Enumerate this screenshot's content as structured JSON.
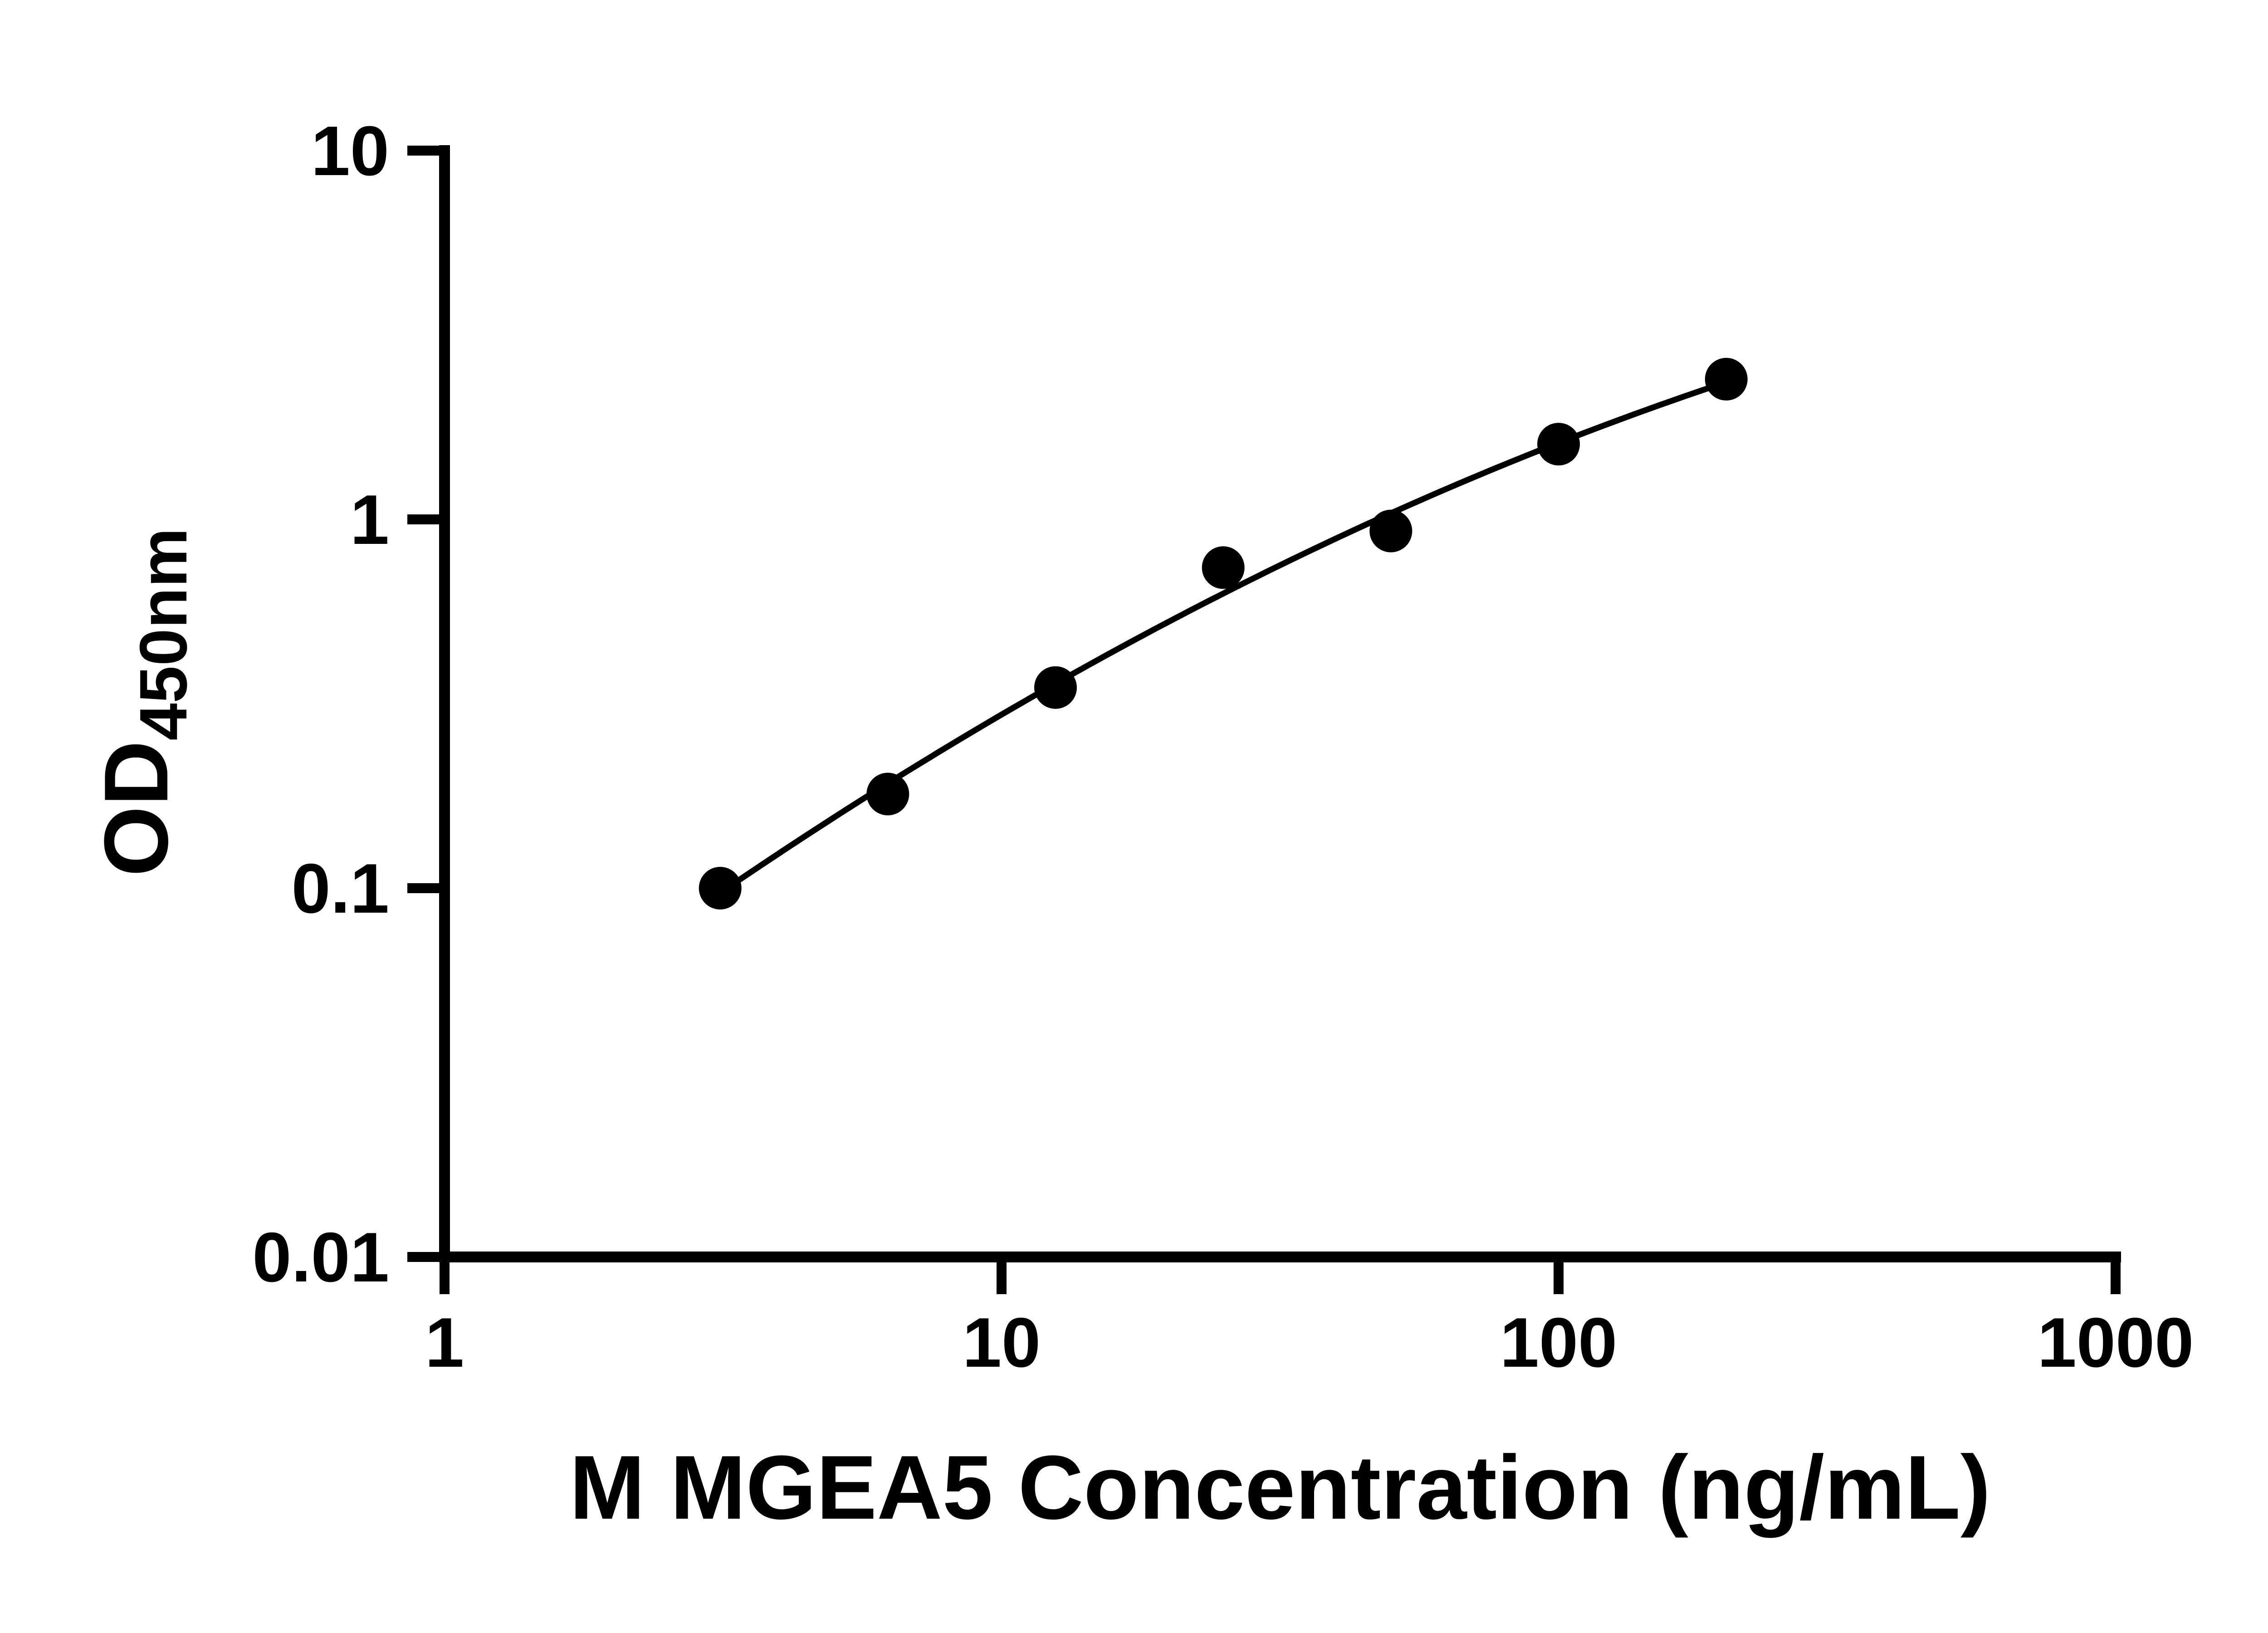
{
  "figure": {
    "background_color": "#ffffff",
    "axis_color": "#000000"
  },
  "chart_data": {
    "type": "scatter",
    "x": [
      3.125,
      6.25,
      12.5,
      25,
      50,
      100,
      200
    ],
    "y": [
      0.1,
      0.18,
      0.35,
      0.74,
      0.93,
      1.6,
      2.4
    ],
    "x_scale": "log",
    "y_scale": "log",
    "xlim": [
      1,
      1000
    ],
    "ylim": [
      0.01,
      10
    ],
    "x_ticks": [
      1,
      10,
      100,
      1000
    ],
    "x_tick_labels": [
      "1",
      "10",
      "100",
      "1000"
    ],
    "y_ticks": [
      10,
      1,
      0.1,
      0.01
    ],
    "y_tick_labels": [
      "10",
      "1",
      "0.1",
      "0.01"
    ],
    "xlabel": "M MGEA5 Concentration (ng/mL)",
    "ylabel_main": "OD",
    "ylabel_sub": "450nm",
    "curve_fit": "smooth fit curve through data points (quadratic in log-log space)",
    "marker": "circle",
    "marker_color": "#000000",
    "line_color": "#000000",
    "grid": false,
    "legend": null
  }
}
